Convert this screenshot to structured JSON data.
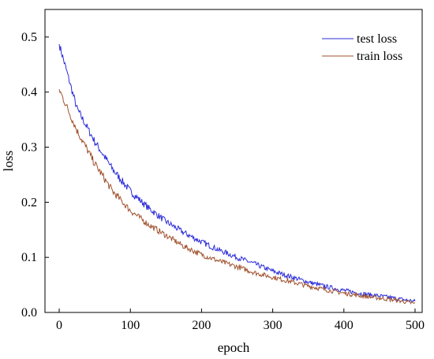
{
  "chart_data": {
    "type": "line",
    "xlabel": "epoch",
    "ylabel": "loss",
    "xlim": [
      -20,
      510
    ],
    "ylim": [
      0,
      0.55
    ],
    "xticks": [
      0,
      100,
      200,
      300,
      400,
      500
    ],
    "yticks": [
      0.0,
      0.1,
      0.2,
      0.3,
      0.4,
      0.5
    ],
    "ytick_labels": [
      "0.0",
      "0.1",
      "0.2",
      "0.3",
      "0.4",
      "0.5"
    ],
    "grid": false,
    "legend_position": "top-right",
    "series": [
      {
        "name": "test loss",
        "color": "#2b2bd9",
        "x": [
          0,
          25,
          50,
          75,
          100,
          125,
          150,
          175,
          200,
          225,
          250,
          275,
          300,
          325,
          350,
          375,
          400,
          425,
          450,
          475,
          500
        ],
        "y": [
          0.487,
          0.37,
          0.31,
          0.26,
          0.22,
          0.19,
          0.165,
          0.145,
          0.128,
          0.113,
          0.1,
          0.088,
          0.075,
          0.065,
          0.055,
          0.047,
          0.04,
          0.034,
          0.03,
          0.025,
          0.02
        ]
      },
      {
        "name": "train loss",
        "color": "#a0522d",
        "x": [
          0,
          25,
          50,
          75,
          100,
          125,
          150,
          175,
          200,
          225,
          250,
          275,
          300,
          325,
          350,
          375,
          400,
          425,
          450,
          475,
          500
        ],
        "y": [
          0.405,
          0.33,
          0.27,
          0.22,
          0.185,
          0.16,
          0.14,
          0.12,
          0.105,
          0.093,
          0.083,
          0.072,
          0.064,
          0.056,
          0.048,
          0.041,
          0.035,
          0.03,
          0.026,
          0.022,
          0.016
        ]
      }
    ]
  }
}
